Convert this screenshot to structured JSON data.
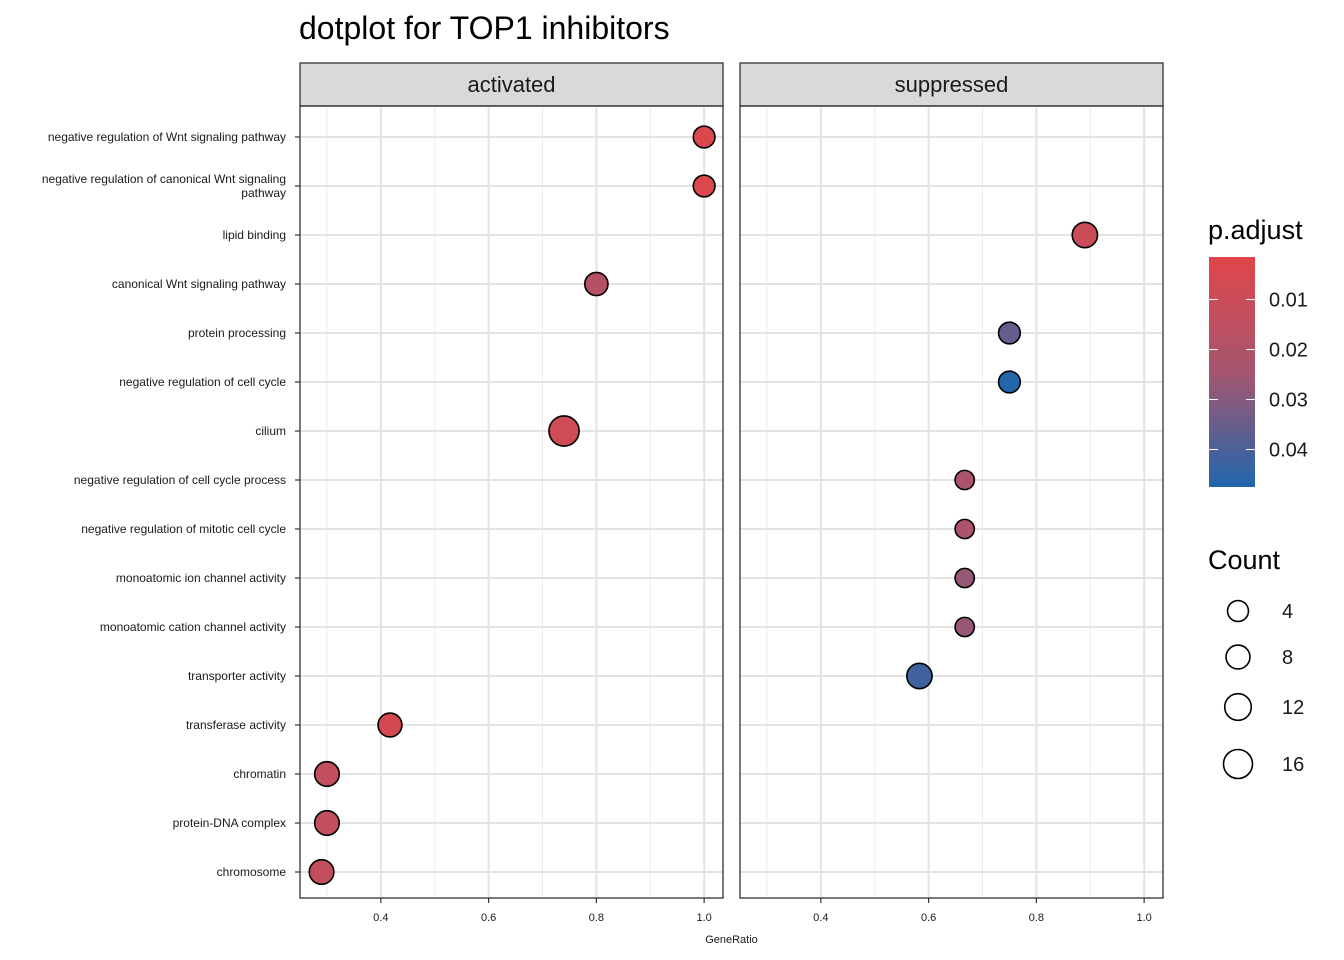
{
  "chart_data": {
    "type": "scatter",
    "title": "dotplot for TOP1 inhibitors",
    "xlabel": "GeneRatio",
    "xlim": [
      0.25,
      1.035
    ],
    "xticks": [
      0.4,
      0.6,
      0.8,
      1.0
    ],
    "xtick_labels": [
      "0.4",
      "0.6",
      "0.8",
      "1.0"
    ],
    "facets": [
      "activated",
      "suppressed"
    ],
    "categories": [
      "negative regulation of Wnt signaling pathway",
      "negative regulation of canonical Wnt signaling pathway",
      "lipid binding",
      "canonical Wnt signaling pathway",
      "protein processing",
      "negative regulation of cell cycle",
      "cilium",
      "negative regulation of cell cycle process",
      "negative regulation of mitotic cell cycle",
      "monoatomic ion channel activity",
      "monoatomic cation channel activity",
      "transporter activity",
      "transferase activity",
      "chromatin",
      "protein-DNA complex",
      "chromosome"
    ],
    "points": [
      {
        "facet": "activated",
        "category": "negative regulation of Wnt signaling pathway",
        "x": 1.0,
        "count": 5,
        "p_adjust": 0.004
      },
      {
        "facet": "activated",
        "category": "negative regulation of canonical Wnt signaling pathway",
        "x": 1.0,
        "count": 5,
        "p_adjust": 0.004
      },
      {
        "facet": "activated",
        "category": "canonical Wnt signaling pathway",
        "x": 0.8,
        "count": 7,
        "p_adjust": 0.018
      },
      {
        "facet": "activated",
        "category": "cilium",
        "x": 0.74,
        "count": 18,
        "p_adjust": 0.008
      },
      {
        "facet": "activated",
        "category": "transferase activity",
        "x": 0.417,
        "count": 8,
        "p_adjust": 0.006
      },
      {
        "facet": "activated",
        "category": "chromatin",
        "x": 0.3,
        "count": 9,
        "p_adjust": 0.013
      },
      {
        "facet": "activated",
        "category": "protein-DNA complex",
        "x": 0.3,
        "count": 9,
        "p_adjust": 0.013
      },
      {
        "facet": "activated",
        "category": "chromosome",
        "x": 0.29,
        "count": 9,
        "p_adjust": 0.013
      },
      {
        "facet": "suppressed",
        "category": "lipid binding",
        "x": 0.89,
        "count": 10,
        "p_adjust": 0.01
      },
      {
        "facet": "suppressed",
        "category": "protein processing",
        "x": 0.75,
        "count": 5,
        "p_adjust": 0.036
      },
      {
        "facet": "suppressed",
        "category": "negative regulation of cell cycle",
        "x": 0.75,
        "count": 5,
        "p_adjust": 0.047
      },
      {
        "facet": "suppressed",
        "category": "negative regulation of cell cycle process",
        "x": 0.667,
        "count": 2,
        "p_adjust": 0.022
      },
      {
        "facet": "suppressed",
        "category": "negative regulation of mitotic cell cycle",
        "x": 0.667,
        "count": 2,
        "p_adjust": 0.022
      },
      {
        "facet": "suppressed",
        "category": "monoatomic ion channel activity",
        "x": 0.667,
        "count": 2,
        "p_adjust": 0.027
      },
      {
        "facet": "suppressed",
        "category": "monoatomic cation channel activity",
        "x": 0.667,
        "count": 2,
        "p_adjust": 0.027
      },
      {
        "facet": "suppressed",
        "category": "transporter activity",
        "x": 0.583,
        "count": 10,
        "p_adjust": 0.042
      }
    ],
    "color_legend": {
      "title": "p.adjust",
      "range": [
        0.0015,
        0.0475
      ],
      "ticks": [
        0.01,
        0.02,
        0.03,
        0.04
      ],
      "tick_labels": [
        "0.01",
        "0.02",
        "0.03",
        "0.04"
      ],
      "low_color": "#e0464a",
      "high_color": "#2166ac"
    },
    "size_legend": {
      "title": "Count",
      "values": [
        4,
        8,
        12,
        16
      ],
      "labels": [
        "4",
        "8",
        "12",
        "16"
      ]
    },
    "grid": true,
    "legend_position": "right"
  }
}
